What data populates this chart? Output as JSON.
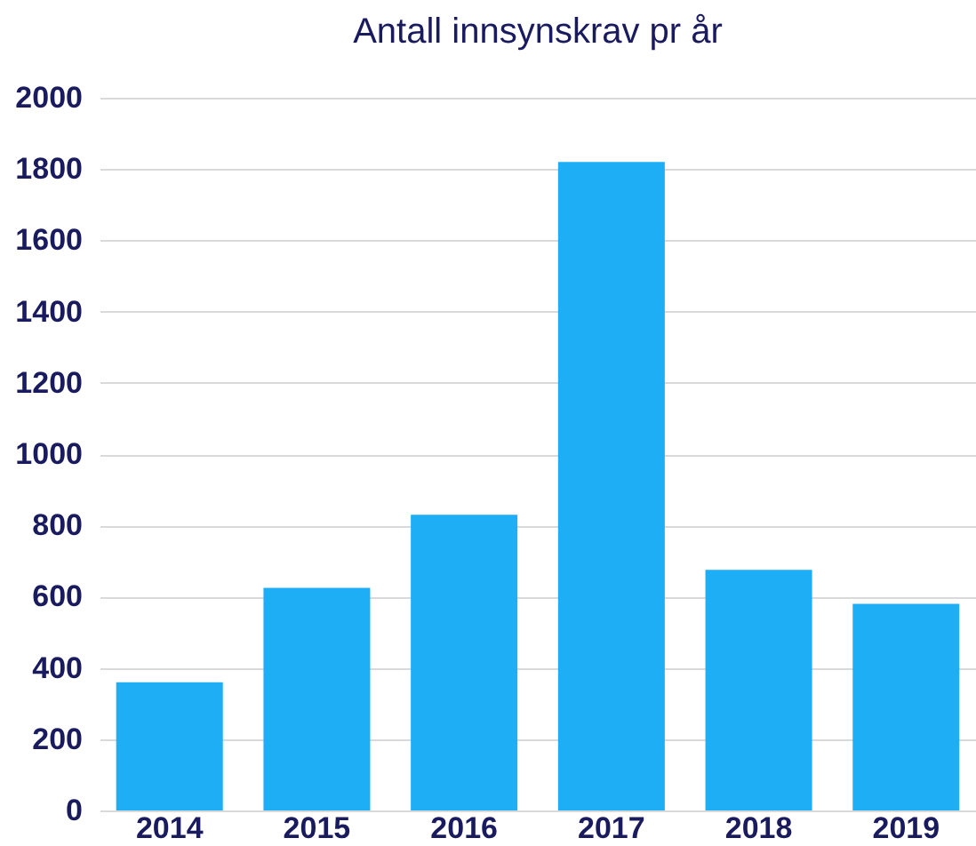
{
  "chart_data": {
    "type": "bar",
    "title": "Antall innsynskrav pr år",
    "categories": [
      "2014",
      "2015",
      "2016",
      "2017",
      "2018",
      "2019"
    ],
    "values": [
      360,
      625,
      830,
      1820,
      675,
      580
    ],
    "color": "#1eaef6",
    "ylim": [
      0,
      2000
    ],
    "yticks": [
      0,
      200,
      400,
      600,
      800,
      1000,
      1200,
      1400,
      1600,
      1800,
      2000
    ],
    "grid": "y"
  }
}
